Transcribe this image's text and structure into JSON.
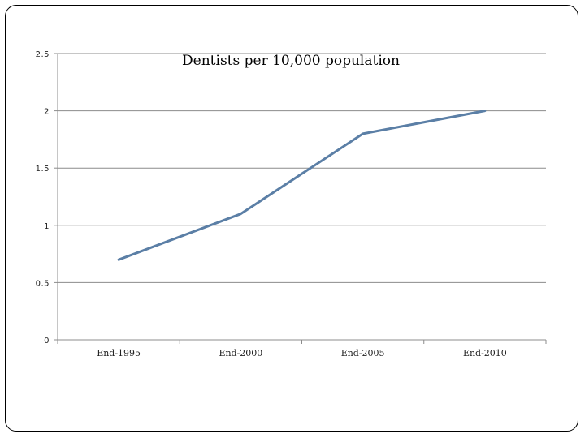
{
  "chart_data": {
    "type": "line",
    "title": "Dentists per 10,000 population",
    "categories": [
      "End-1995",
      "End-2000",
      "End-2005",
      "End-2010"
    ],
    "series": [
      {
        "values": [
          0.7,
          1.1,
          1.8,
          2.0
        ]
      }
    ],
    "yticks": [
      "0",
      "0.5",
      "1",
      "1.5",
      "2",
      "2.5"
    ],
    "ylim": [
      0,
      2.5
    ],
    "xlabel": "",
    "ylabel": "",
    "grid": true,
    "legend": "none",
    "colors": {
      "line": "#5b7fa6",
      "grid": "#8c8c8c",
      "axis": "#8c8c8c"
    }
  }
}
